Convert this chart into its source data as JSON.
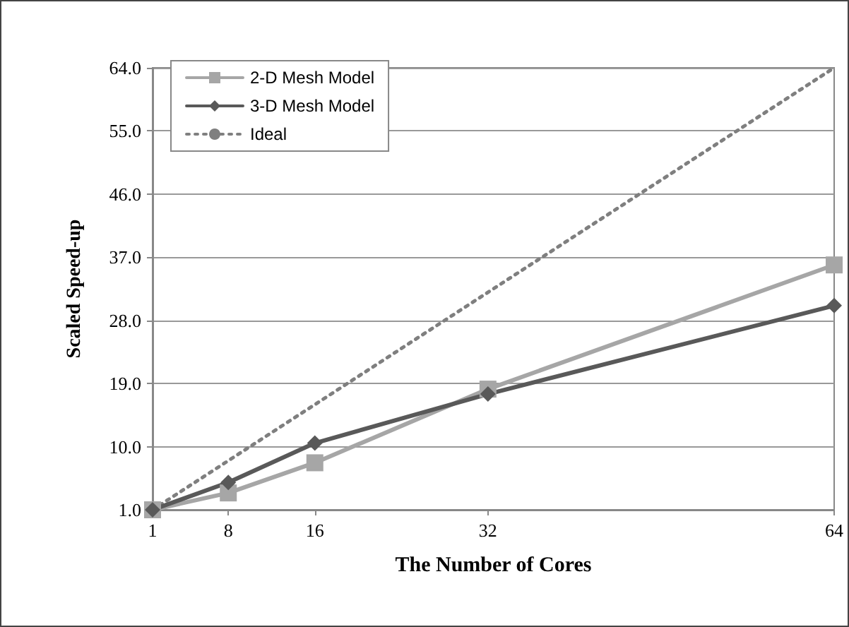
{
  "chart_data": {
    "type": "line",
    "xlabel": "The Number of Cores",
    "ylabel": "Scaled Speed-up",
    "xlim": [
      1,
      64
    ],
    "xticks": [
      1,
      8,
      16,
      32,
      64
    ],
    "ylim": [
      1,
      64
    ],
    "yticks": [
      {
        "value": 1,
        "label": "1.0"
      },
      {
        "value": 10,
        "label": "10.0"
      },
      {
        "value": 19,
        "label": "19.0"
      },
      {
        "value": 28,
        "label": "28.0"
      },
      {
        "value": 37,
        "label": "37.0"
      },
      {
        "value": 46,
        "label": "46.0"
      },
      {
        "value": 55,
        "label": "55.0"
      },
      {
        "value": 64,
        "label": "64.0"
      }
    ],
    "grid": "y",
    "legend": "top left",
    "series": [
      {
        "name": "2-D Mesh Model",
        "color": "#a6a6a6",
        "marker": "square",
        "line_style": "solid",
        "x": [
          1,
          8,
          16,
          32,
          64
        ],
        "values": [
          1,
          3.4,
          7.7,
          18.2,
          35.9
        ]
      },
      {
        "name": "3-D Mesh Model",
        "color": "#595959",
        "marker": "diamond",
        "line_style": "solid",
        "x": [
          1,
          8,
          16,
          32,
          64
        ],
        "values": [
          1,
          4.9,
          10.5,
          17.5,
          30.1
        ]
      },
      {
        "name": "Ideal",
        "color": "#7f7f7f",
        "marker": "none",
        "line_style": "dotted",
        "x": [
          1,
          64
        ],
        "values": [
          1,
          64
        ]
      }
    ]
  }
}
